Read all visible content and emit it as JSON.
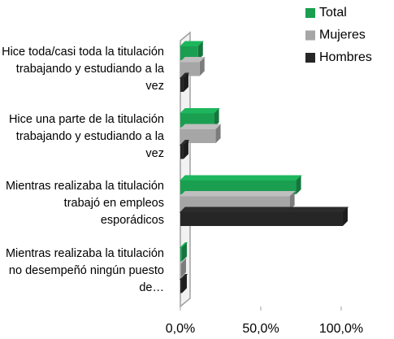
{
  "chart_data": {
    "type": "bar",
    "orientation": "horizontal",
    "categories": [
      "Hice toda/casi toda la titulación trabajando y estudiando a la vez",
      "Hice una parte de la titulación trabajando y estudiando a la vez",
      "Mientras realizaba la titulación trabajó en empleos esporádicos",
      "Mientras realizaba la titulación no desempeñó ningún puesto de…"
    ],
    "series": [
      {
        "name": "Total",
        "color": "#1a9e50",
        "values": [
          11,
          21,
          72,
          1
        ]
      },
      {
        "name": "Mujeres",
        "color": "#a6a6a6",
        "values": [
          12,
          22,
          68,
          0.5
        ]
      },
      {
        "name": "Hombres",
        "color": "#262626",
        "values": [
          2,
          2,
          101,
          1
        ]
      }
    ],
    "xlim": [
      0,
      105
    ],
    "xticks": [
      {
        "value": 0,
        "label": "0,0%"
      },
      {
        "value": 50,
        "label": "50,0%"
      },
      {
        "value": 100,
        "label": "100,0%"
      }
    ],
    "legend": "top-right"
  }
}
